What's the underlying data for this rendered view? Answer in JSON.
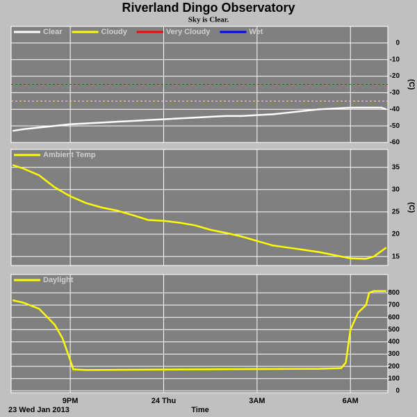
{
  "title": "Riverland Dingo Observatory",
  "subtitle": "Sky is Clear.",
  "x_axis": {
    "label": "Time",
    "date": "23 Wed Jan 2013",
    "xlim": [
      19.1,
      31.2
    ],
    "xticks": [
      {
        "value": 21,
        "label": "9PM"
      },
      {
        "value": 24,
        "label": "24 Thu"
      },
      {
        "value": 27,
        "label": "3AM"
      },
      {
        "value": 30,
        "label": "6AM"
      }
    ]
  },
  "chart_data": [
    {
      "type": "line",
      "ylabel": "(C)",
      "ylim": [
        -60,
        10
      ],
      "yticks": [
        0,
        -10,
        -20,
        -30,
        -40,
        -50,
        -60
      ],
      "grid": true,
      "x": [
        19.15,
        19.5,
        20,
        20.5,
        21,
        21.5,
        22,
        22.5,
        23,
        23.5,
        24,
        24.5,
        25,
        25.5,
        26,
        26.5,
        27,
        27.5,
        28,
        28.5,
        29,
        29.5,
        30,
        30.5,
        31,
        31.15
      ],
      "series": [
        {
          "name": "Clear",
          "color": "#ffffff",
          "values": [
            -53,
            -52,
            -51,
            -50,
            -49,
            -48.5,
            -48,
            -47.5,
            -47,
            -46.5,
            -46,
            -45.5,
            -45,
            -44.5,
            -44,
            -44,
            -43.5,
            -43,
            -42,
            -41,
            -40,
            -39.5,
            -39,
            -39,
            -39,
            -40
          ]
        },
        {
          "name": "Cloudy",
          "color": "#ffff00",
          "threshold": -35
        },
        {
          "name": "Very Cloudy",
          "color": "#ff0000",
          "threshold": -25
        },
        {
          "name": "Wet",
          "color": "#0000ff"
        }
      ]
    },
    {
      "type": "line",
      "ylabel": "(C)",
      "ylim": [
        13,
        39
      ],
      "yticks": [
        35,
        30,
        25,
        20,
        15
      ],
      "grid": true,
      "x": [
        19.15,
        19.5,
        20,
        20.5,
        21,
        21.5,
        22,
        22.5,
        23,
        23.5,
        24,
        24.5,
        25,
        25.5,
        26,
        26.5,
        27,
        27.5,
        28,
        28.5,
        29,
        29.5,
        30,
        30.5,
        30.75,
        31.15
      ],
      "series": [
        {
          "name": "Ambient Temp",
          "color": "#ffff00",
          "values": [
            35.5,
            34.7,
            33.2,
            30.5,
            28.5,
            27,
            26,
            25.3,
            24.3,
            23.2,
            23,
            22.6,
            22,
            21,
            20.3,
            19.5,
            18.5,
            17.5,
            17,
            16.5,
            16,
            15.3,
            14.6,
            14.5,
            15,
            17
          ]
        }
      ]
    },
    {
      "type": "line",
      "ylim": [
        -15,
        950
      ],
      "yticks": [
        800,
        700,
        600,
        500,
        400,
        300,
        200,
        100,
        0
      ],
      "grid": true,
      "x": [
        19.15,
        19.5,
        20,
        20.5,
        20.75,
        21,
        21.1,
        21.5,
        23,
        25,
        27,
        29,
        29.7,
        29.85,
        30,
        30.25,
        30.5,
        30.6,
        30.75,
        31.15
      ],
      "series": [
        {
          "name": "Daylight",
          "color": "#ffff00",
          "values": [
            740,
            720,
            670,
            540,
            430,
            250,
            175,
            170,
            172,
            175,
            178,
            180,
            185,
            230,
            500,
            640,
            700,
            800,
            815,
            815
          ]
        }
      ]
    }
  ]
}
